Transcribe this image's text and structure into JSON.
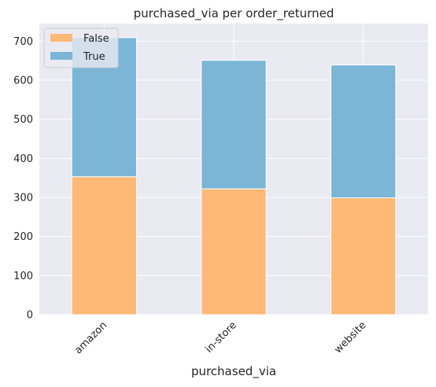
{
  "chart_data": {
    "type": "bar",
    "stacked": true,
    "title": "purchased_via per order_returned",
    "xlabel": "purchased_via",
    "ylabel": "",
    "categories": [
      "amazon",
      "in-store",
      "website"
    ],
    "series": [
      {
        "name": "False",
        "values": [
          353,
          322,
          299
        ],
        "color": "#fdb975"
      },
      {
        "name": "True",
        "values": [
          356,
          329,
          340
        ],
        "color": "#7bb6d6"
      }
    ],
    "ylim": [
      0,
      745
    ],
    "yticks": [
      0,
      100,
      200,
      300,
      400,
      500,
      600,
      700
    ],
    "grid": true,
    "legend_position": "top-left",
    "colors": {
      "background": "#eaeaf2",
      "grid": "#ffffff",
      "text": "#262626"
    }
  }
}
